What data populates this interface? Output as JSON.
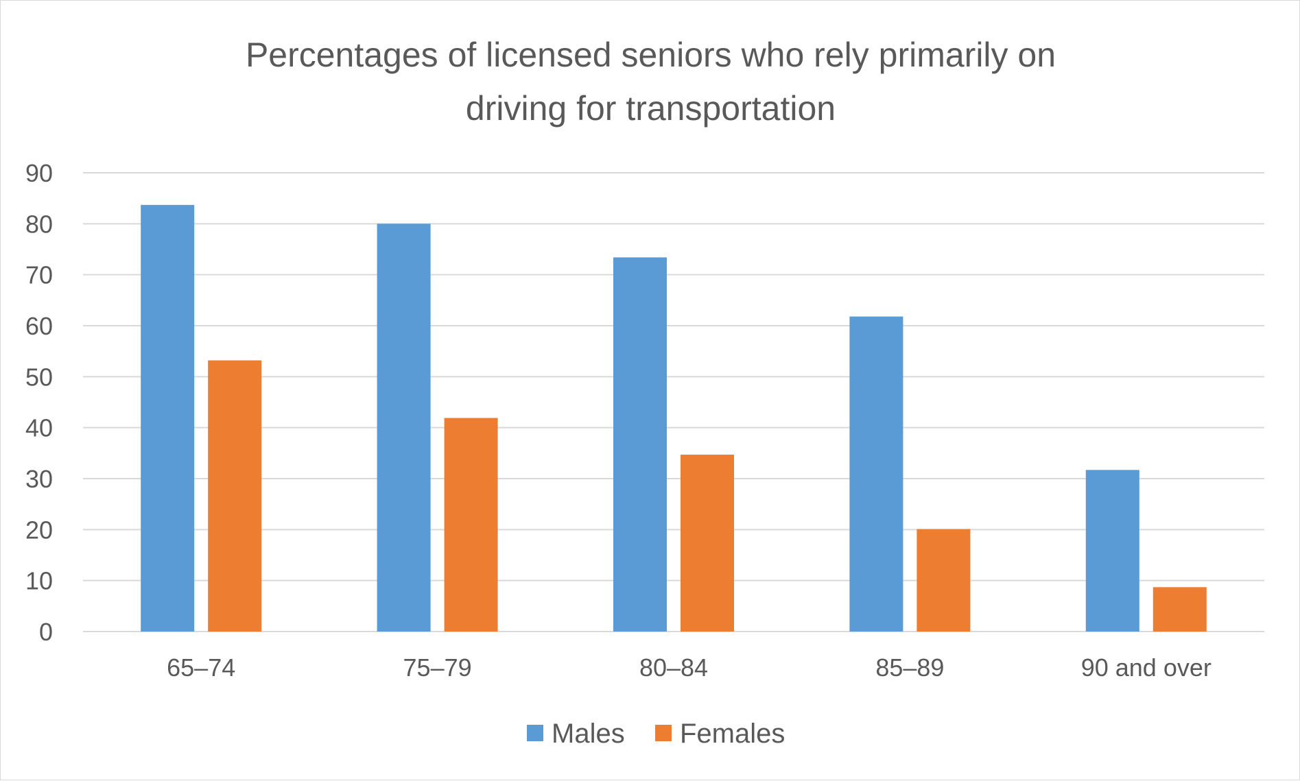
{
  "chart_data": {
    "type": "bar",
    "title": "Percentages of licensed seniors who rely primarily on driving for transportation",
    "title_lines": [
      "Percentages of licensed seniors who rely primarily on",
      "driving for transportation"
    ],
    "categories": [
      "65–74",
      "75–79",
      "80–84",
      "85–89",
      "90 and over"
    ],
    "series": [
      {
        "name": "Males",
        "color": "#5b9bd5",
        "values": [
          83.7,
          80.0,
          73.4,
          61.8,
          31.7
        ]
      },
      {
        "name": "Females",
        "color": "#ed7d31",
        "values": [
          53.2,
          41.9,
          34.7,
          20.1,
          8.7
        ]
      }
    ],
    "ylim": [
      0,
      90
    ],
    "yticks": [
      0,
      10,
      20,
      30,
      40,
      50,
      60,
      70,
      80,
      90
    ],
    "xlabel": "",
    "ylabel": "",
    "grid": true,
    "legend": "bottom"
  }
}
